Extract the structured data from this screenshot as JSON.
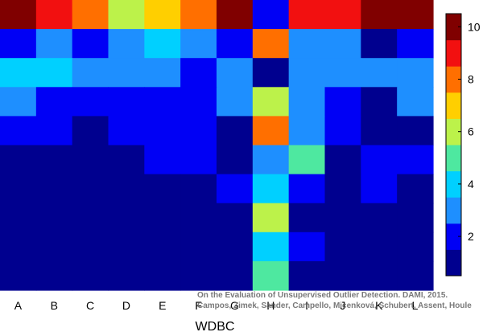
{
  "chart_data": {
    "type": "heatmap",
    "dataset": "WDBC",
    "xlabel": "WDBC",
    "columns": [
      "A",
      "B",
      "C",
      "D",
      "E",
      "F",
      "G",
      "H",
      "I",
      "J",
      "K",
      "L"
    ],
    "num_rows": 10,
    "rows_top_to_bottom": [
      [
        10,
        9,
        8,
        6,
        7,
        8,
        10,
        2,
        9,
        9,
        10,
        10
      ],
      [
        2,
        3,
        2,
        3,
        4,
        3,
        2,
        8,
        3,
        3,
        1,
        2
      ],
      [
        4,
        4,
        3,
        3,
        3,
        2,
        3,
        1,
        3,
        3,
        3,
        3
      ],
      [
        3,
        2,
        2,
        2,
        2,
        2,
        3,
        6,
        3,
        2,
        1,
        3
      ],
      [
        2,
        2,
        1,
        2,
        2,
        2,
        1,
        8,
        3,
        2,
        1,
        1
      ],
      [
        1,
        1,
        1,
        1,
        2,
        2,
        1,
        3,
        5,
        1,
        2,
        2
      ],
      [
        1,
        1,
        1,
        1,
        1,
        1,
        2,
        4,
        2,
        1,
        2,
        1
      ],
      [
        1,
        1,
        1,
        1,
        1,
        1,
        1,
        6,
        1,
        1,
        1,
        1
      ],
      [
        1,
        1,
        1,
        1,
        1,
        1,
        1,
        4,
        2,
        1,
        1,
        1
      ],
      [
        1,
        1,
        1,
        1,
        1,
        1,
        1,
        5,
        1,
        1,
        1,
        1
      ]
    ],
    "colorbar": {
      "range": [
        0.5,
        10.5
      ],
      "ticks": [
        2,
        4,
        6,
        8,
        10
      ],
      "levels": [
        {
          "value": 1,
          "color": "#00008f"
        },
        {
          "value": 2,
          "color": "#0000f5"
        },
        {
          "value": 3,
          "color": "#1e8fff"
        },
        {
          "value": 4,
          "color": "#00d0ff"
        },
        {
          "value": 5,
          "color": "#4ee8a0"
        },
        {
          "value": 6,
          "color": "#bcf24a"
        },
        {
          "value": 7,
          "color": "#ffcf00"
        },
        {
          "value": 8,
          "color": "#ff6f00"
        },
        {
          "value": 9,
          "color": "#f21010"
        },
        {
          "value": 10,
          "color": "#800000"
        }
      ]
    },
    "annotation": [
      "On the Evaluation of Unsupervised Outlier Detection. DAMI, 2015.",
      "Campos, Zimek, Sander, Campello, Micenková, Schubert, Assent, Houle"
    ]
  }
}
